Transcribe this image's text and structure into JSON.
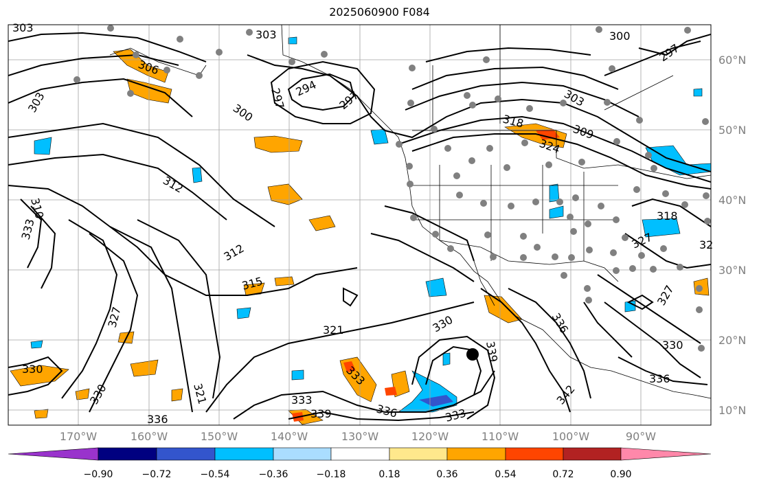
{
  "title": "2025060900 F084",
  "lat_labels": [
    "60°N",
    "50°N",
    "40°N",
    "30°N",
    "20°N",
    "10°N"
  ],
  "lon_labels": [
    "170°W",
    "160°W",
    "150°W",
    "140°W",
    "130°W",
    "120°W",
    "110°W",
    "100°W",
    "90°W"
  ],
  "contour_labels": [
    "303",
    "303",
    "306",
    "303",
    "300",
    "297",
    "294",
    "297",
    "300",
    "303",
    "309",
    "318",
    "324",
    "312",
    "310",
    "333",
    "312",
    "315",
    "321",
    "327",
    "330",
    "330",
    "321",
    "333",
    "336",
    "339",
    "333",
    "330",
    "339",
    "336",
    "342",
    "327",
    "330",
    "336",
    "318",
    "327",
    "32"
  ],
  "colorbar": {
    "tick_labels": [
      "−0.90",
      "−0.72",
      "−0.54",
      "−0.36",
      "−0.18",
      "0.18",
      "0.36",
      "0.54",
      "0.72",
      "0.90"
    ],
    "colors": [
      "#9933cc",
      "#000080",
      "#3355cc",
      "#00bfff",
      "#aaddff",
      "#ffffff",
      "#ffe88c",
      "#ffa500",
      "#ff4500",
      "#b22222",
      "#ff88aa"
    ]
  },
  "legend_colors": {
    "contour": "#000000",
    "gridline": "#a0a0a0",
    "station": "#808080",
    "storm_marker": "#000000"
  }
}
